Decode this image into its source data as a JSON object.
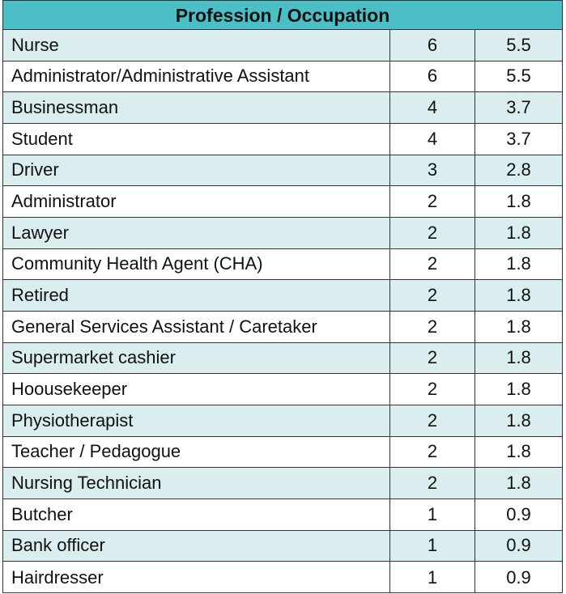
{
  "header": {
    "title": "Profession / Occupation"
  },
  "table": {
    "rows": [
      [
        "Nurse",
        6,
        5.5
      ],
      [
        "Administrator/Administrative Assistant",
        6,
        5.5
      ],
      [
        "Businessman",
        4,
        3.7
      ],
      [
        "Student",
        4,
        3.7
      ],
      [
        "Driver",
        3,
        2.8
      ],
      [
        "Administrator",
        2,
        1.8
      ],
      [
        "Lawyer",
        2,
        1.8
      ],
      [
        "Community Health Agent (CHA)",
        2,
        1.8
      ],
      [
        "Retired",
        2,
        1.8
      ],
      [
        "General Services Assistant / Caretaker",
        2,
        1.8
      ],
      [
        "Supermarket cashier",
        2,
        1.8
      ],
      [
        "Hoousekeeper",
        2,
        1.8
      ],
      [
        "Physiotherapist",
        2,
        1.8
      ],
      [
        "Teacher / Pedagogue",
        2,
        1.8
      ],
      [
        "Nursing Technician",
        2,
        1.8
      ],
      [
        "Butcher",
        1,
        0.9
      ],
      [
        "Bank officer",
        1,
        0.9
      ],
      [
        "Hairdresser",
        1,
        0.9
      ]
    ]
  }
}
